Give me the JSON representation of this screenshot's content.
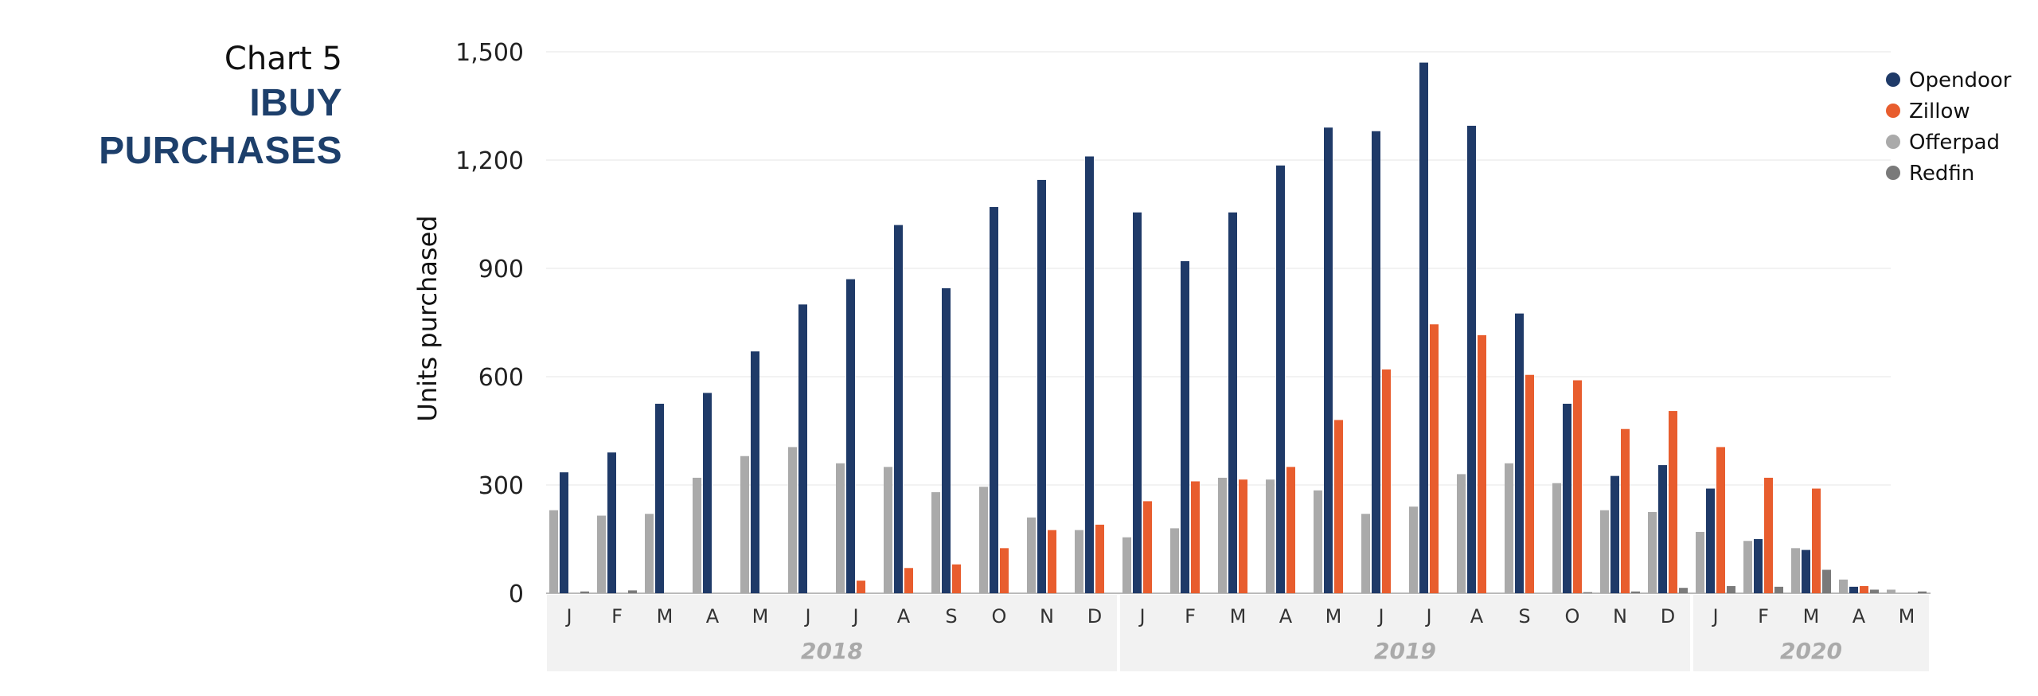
{
  "heading": {
    "number": "Chart 5",
    "title": "IBUY PURCHASES"
  },
  "chart_data": {
    "type": "bar",
    "ylabel": "Units purchased",
    "ylim": [
      0,
      1500
    ],
    "yticks": [
      "0",
      "300",
      "600",
      "900",
      "1,200",
      "1,500"
    ],
    "grid": true,
    "legend_position": "top-right",
    "categories": [
      "J",
      "F",
      "M",
      "A",
      "M",
      "J",
      "J",
      "A",
      "S",
      "O",
      "N",
      "D",
      "J",
      "F",
      "M",
      "A",
      "M",
      "J",
      "J",
      "A",
      "S",
      "O",
      "N",
      "D",
      "J",
      "F",
      "M",
      "A",
      "M"
    ],
    "year_groups": [
      {
        "label": "2018",
        "start": 0,
        "end": 11
      },
      {
        "label": "2019",
        "start": 12,
        "end": 23
      },
      {
        "label": "2020",
        "start": 24,
        "end": 28
      }
    ],
    "series": [
      {
        "name": "Offerpad",
        "color": "#aaaaaa",
        "values": [
          230,
          215,
          220,
          320,
          380,
          405,
          360,
          350,
          280,
          295,
          210,
          175,
          155,
          180,
          320,
          315,
          285,
          220,
          240,
          330,
          360,
          305,
          230,
          225,
          170,
          145,
          125,
          38,
          10
        ]
      },
      {
        "name": "Opendoor",
        "color": "#1f3a68",
        "values": [
          335,
          390,
          525,
          555,
          670,
          800,
          870,
          1020,
          845,
          1070,
          1145,
          1210,
          1055,
          920,
          1055,
          1185,
          1290,
          1280,
          1470,
          1295,
          775,
          525,
          325,
          355,
          290,
          150,
          120,
          18,
          0
        ]
      },
      {
        "name": "Zillow",
        "color": "#e85d2e",
        "values": [
          0,
          0,
          0,
          0,
          0,
          0,
          35,
          70,
          80,
          125,
          175,
          190,
          255,
          310,
          315,
          350,
          480,
          620,
          745,
          715,
          605,
          590,
          455,
          505,
          405,
          320,
          290,
          20,
          0
        ]
      },
      {
        "name": "Redfin",
        "color": "#7a7a7a",
        "values": [
          5,
          8,
          0,
          0,
          0,
          0,
          0,
          0,
          0,
          0,
          0,
          0,
          0,
          0,
          0,
          0,
          0,
          0,
          0,
          0,
          0,
          3,
          5,
          15,
          20,
          18,
          65,
          10,
          5
        ]
      }
    ],
    "legend_order": [
      "Opendoor",
      "Zillow",
      "Offerpad",
      "Redfin"
    ]
  }
}
